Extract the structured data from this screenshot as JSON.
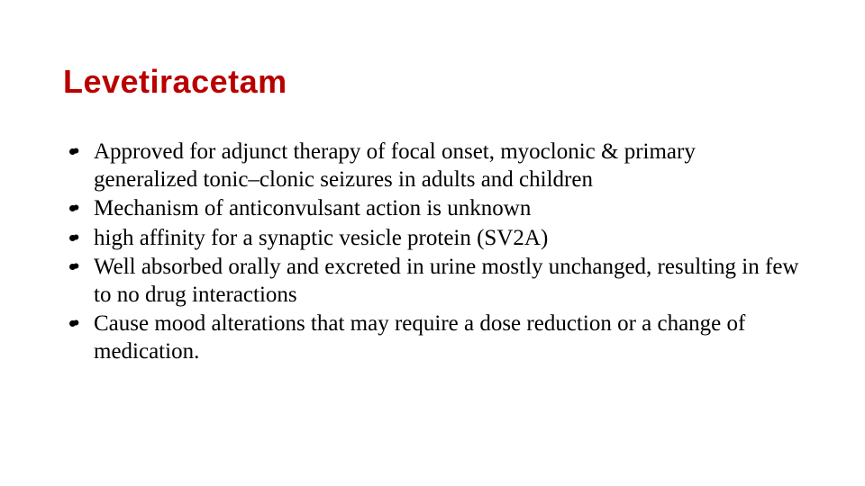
{
  "title": {
    "text": "Levetiracetam",
    "color": "#b90000",
    "fontsize": 36
  },
  "body": {
    "color": "#000000",
    "fontsize": 25,
    "line_height": 1.22,
    "bullets": [
      "Approved for adjunct therapy of focal onset, myoclonic & primary generalized tonic–clonic seizures in adults and children",
      "Mechanism of anticonvulsant action is unknown",
      "high affinity for a synaptic vesicle protein (SV2A)",
      "Well absorbed orally and excreted in urine mostly unchanged, resulting in few to no drug interactions",
      "Cause mood alterations that may require a dose reduction or a change of medication."
    ]
  },
  "background_color": "#ffffff"
}
